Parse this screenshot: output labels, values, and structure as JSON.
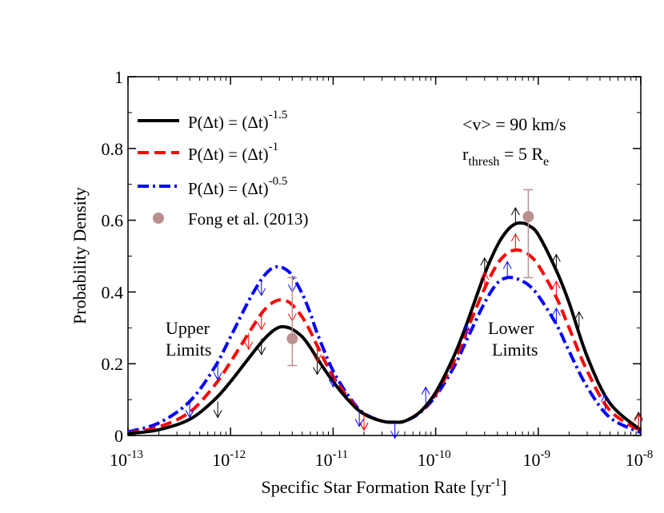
{
  "chart_data": {
    "type": "line",
    "title": "",
    "xlabel": "Specific Star Formation Rate [yr",
    "xlabel_sup": "-1",
    "xlabel_suffix": "]",
    "ylabel": "Probability Density",
    "xscale": "log",
    "xlim": [
      1e-13,
      1e-08
    ],
    "ylim": [
      0,
      1
    ],
    "grid": false,
    "legend_position": "top-left",
    "x_ticks": [
      {
        "value": 1e-13,
        "base": "10",
        "exp": "-13"
      },
      {
        "value": 1e-12,
        "base": "10",
        "exp": "-12"
      },
      {
        "value": 1e-11,
        "base": "10",
        "exp": "-11"
      },
      {
        "value": 1e-10,
        "base": "10",
        "exp": "-10"
      },
      {
        "value": 1e-09,
        "base": "10",
        "exp": "-9"
      },
      {
        "value": 1e-08,
        "base": "10",
        "exp": "-8"
      }
    ],
    "y_ticks": [
      {
        "value": 0,
        "label": "0"
      },
      {
        "value": 0.2,
        "label": "0.2"
      },
      {
        "value": 0.4,
        "label": "0.4"
      },
      {
        "value": 0.6,
        "label": "0.6"
      },
      {
        "value": 0.8,
        "label": "0.8"
      },
      {
        "value": 1,
        "label": "1"
      }
    ],
    "series": [
      {
        "legend_main": "P(Δt) = (Δt)",
        "legend_exp": "-1.5",
        "color": "#000000",
        "style": "solid",
        "x": [
          1e-13,
          2e-13,
          4e-13,
          7e-13,
          1e-12,
          1.5e-12,
          2e-12,
          2.5e-12,
          3e-12,
          3.5e-12,
          4e-12,
          5e-12,
          6e-12,
          7e-12,
          1e-11,
          1.5e-11,
          2e-11,
          3e-11,
          4e-11,
          5e-11,
          7e-11,
          1e-10,
          1.5e-10,
          2e-10,
          3e-10,
          4e-10,
          5e-10,
          6e-10,
          7e-10,
          8e-10,
          1e-09,
          1.5e-09,
          2e-09,
          3e-09,
          5e-09,
          1e-08
        ],
        "y": [
          0.005,
          0.016,
          0.045,
          0.1,
          0.15,
          0.215,
          0.26,
          0.288,
          0.302,
          0.302,
          0.296,
          0.275,
          0.245,
          0.215,
          0.15,
          0.09,
          0.06,
          0.04,
          0.037,
          0.04,
          0.065,
          0.12,
          0.22,
          0.31,
          0.45,
          0.53,
          0.572,
          0.59,
          0.592,
          0.586,
          0.56,
          0.46,
          0.37,
          0.22,
          0.09,
          0.015
        ]
      },
      {
        "legend_main": "P(Δt) = (Δt)",
        "legend_exp": "-1",
        "color": "#ff0000",
        "style": "dashed",
        "x": [
          1e-13,
          2e-13,
          4e-13,
          7e-13,
          1e-12,
          1.5e-12,
          2e-12,
          2.5e-12,
          3e-12,
          3.5e-12,
          4e-12,
          5e-12,
          6e-12,
          7e-12,
          1e-11,
          1.5e-11,
          2e-11,
          3e-11,
          4e-11,
          5e-11,
          7e-11,
          1e-10,
          1.5e-10,
          2e-10,
          3e-10,
          4e-10,
          5e-10,
          6e-10,
          7e-10,
          8e-10,
          1e-09,
          1.5e-09,
          2e-09,
          3e-09,
          5e-09,
          1e-08
        ],
        "y": [
          0.007,
          0.024,
          0.065,
          0.14,
          0.205,
          0.285,
          0.34,
          0.368,
          0.378,
          0.375,
          0.364,
          0.33,
          0.29,
          0.25,
          0.165,
          0.095,
          0.06,
          0.04,
          0.037,
          0.04,
          0.065,
          0.115,
          0.205,
          0.29,
          0.41,
          0.478,
          0.508,
          0.517,
          0.514,
          0.505,
          0.475,
          0.385,
          0.3,
          0.18,
          0.07,
          0.012
        ]
      },
      {
        "legend_main": "P(Δt) = (Δt)",
        "legend_exp": "-0.5",
        "color": "#0000ff",
        "style": "dashdot",
        "x": [
          1e-13,
          2e-13,
          4e-13,
          7e-13,
          1e-12,
          1.5e-12,
          2e-12,
          2.5e-12,
          3e-12,
          3.5e-12,
          4e-12,
          5e-12,
          6e-12,
          7e-12,
          1e-11,
          1.5e-11,
          2e-11,
          3e-11,
          4e-11,
          5e-11,
          7e-11,
          1e-10,
          1.5e-10,
          2e-10,
          3e-10,
          4e-10,
          5e-10,
          6e-10,
          7e-10,
          8e-10,
          1e-09,
          1.5e-09,
          2e-09,
          3e-09,
          5e-09,
          1e-08
        ],
        "y": [
          0.01,
          0.035,
          0.095,
          0.19,
          0.275,
          0.375,
          0.435,
          0.465,
          0.47,
          0.462,
          0.445,
          0.395,
          0.34,
          0.285,
          0.18,
          0.1,
          0.062,
          0.04,
          0.037,
          0.04,
          0.063,
          0.11,
          0.19,
          0.265,
          0.37,
          0.425,
          0.44,
          0.438,
          0.43,
          0.42,
          0.39,
          0.31,
          0.235,
          0.135,
          0.05,
          0.008
        ]
      }
    ],
    "observations": {
      "legend_label": "Fong et al. (2013)",
      "color": "#bc8f8f",
      "points": [
        {
          "x": 4e-12,
          "y": 0.27,
          "yerr_low": 0.075,
          "yerr_high": 0.17
        },
        {
          "x": 8e-10,
          "y": 0.61,
          "yerr_low": 0.17,
          "yerr_high": 0.075
        }
      ]
    },
    "limit_arrows": [
      {
        "series": 0,
        "x": 7.5e-13,
        "y": 0.095,
        "dir": "down"
      },
      {
        "series": 0,
        "x": 2e-12,
        "y": 0.27,
        "dir": "down"
      },
      {
        "series": 0,
        "x": 4e-12,
        "y": 0.3,
        "dir": "down"
      },
      {
        "series": 0,
        "x": 7e-12,
        "y": 0.215,
        "dir": "down"
      },
      {
        "series": 0,
        "x": 2e-11,
        "y": 0.06,
        "dir": "down"
      },
      {
        "series": 1,
        "x": 2e-12,
        "y": 0.34,
        "dir": "down"
      },
      {
        "series": 1,
        "x": 4e-12,
        "y": 0.364,
        "dir": "down"
      },
      {
        "series": 1,
        "x": 7e-12,
        "y": 0.25,
        "dir": "down"
      },
      {
        "series": 1,
        "x": 1.5e-12,
        "y": 0.285,
        "dir": "down"
      },
      {
        "series": 1,
        "x": 2e-11,
        "y": 0.06,
        "dir": "down"
      },
      {
        "series": 2,
        "x": 7.5e-13,
        "y": 0.2,
        "dir": "down"
      },
      {
        "series": 2,
        "x": 2e-12,
        "y": 0.435,
        "dir": "down"
      },
      {
        "series": 2,
        "x": 4e-12,
        "y": 0.445,
        "dir": "down"
      },
      {
        "series": 2,
        "x": 1e-11,
        "y": 0.18,
        "dir": "down"
      },
      {
        "series": 2,
        "x": 1.8e-11,
        "y": 0.07,
        "dir": "down"
      },
      {
        "series": 2,
        "x": 4e-11,
        "y": 0.037,
        "dir": "down"
      },
      {
        "series": 2,
        "x": 4e-13,
        "y": 0.095,
        "dir": "down"
      },
      {
        "series": 0,
        "x": 3e-10,
        "y": 0.45,
        "dir": "up"
      },
      {
        "series": 0,
        "x": 6e-10,
        "y": 0.59,
        "dir": "up"
      },
      {
        "series": 0,
        "x": 1.5e-09,
        "y": 0.46,
        "dir": "up"
      },
      {
        "series": 0,
        "x": 2.5e-09,
        "y": 0.3,
        "dir": "up"
      },
      {
        "series": 0,
        "x": 9.5e-09,
        "y": 0.02,
        "dir": "up"
      },
      {
        "series": 1,
        "x": 3e-10,
        "y": 0.41,
        "dir": "up"
      },
      {
        "series": 1,
        "x": 6e-10,
        "y": 0.517,
        "dir": "up"
      },
      {
        "series": 1,
        "x": 1.5e-09,
        "y": 0.385,
        "dir": "up"
      },
      {
        "series": 1,
        "x": 9.5e-09,
        "y": 0.015,
        "dir": "up"
      },
      {
        "series": 2,
        "x": 8e-11,
        "y": 0.09,
        "dir": "up"
      },
      {
        "series": 2,
        "x": 2e-10,
        "y": 0.265,
        "dir": "up"
      },
      {
        "series": 2,
        "x": 5e-10,
        "y": 0.44,
        "dir": "up"
      },
      {
        "series": 2,
        "x": 1.5e-09,
        "y": 0.31,
        "dir": "up"
      },
      {
        "series": 2,
        "x": 4.5e-09,
        "y": 0.07,
        "dir": "up"
      }
    ],
    "annotations": {
      "velocity": "<v> = 90 km/s",
      "rthresh_r": "r",
      "rthresh_sub": "thresh",
      "rthresh_mid": " = 5 R",
      "rthresh_sub2": "e",
      "upper_line1": "Upper",
      "upper_line2": "Limits",
      "lower_line1": "Lower",
      "lower_line2": "Limits"
    }
  }
}
